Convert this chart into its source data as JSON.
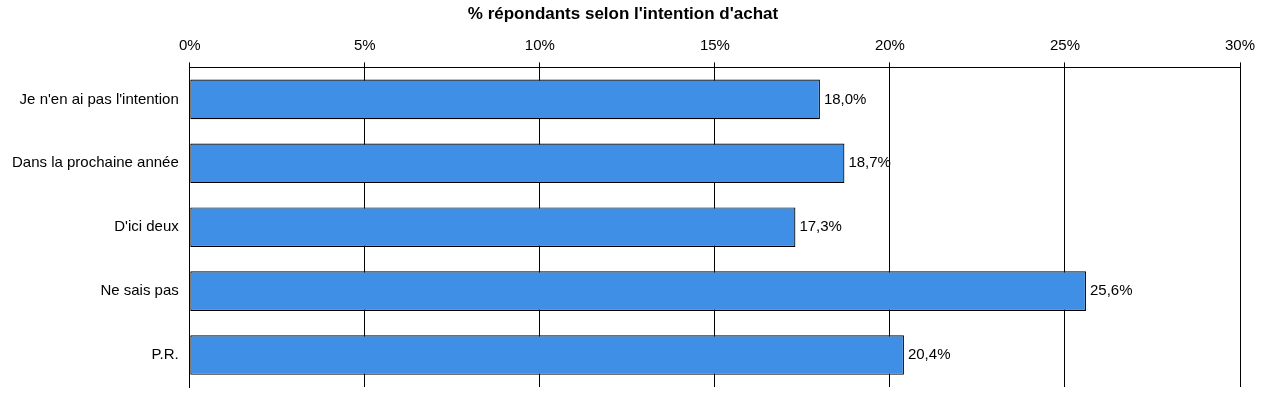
{
  "chart_data": {
    "type": "bar",
    "orientation": "horizontal",
    "title": "% répondants selon l'intention d'achat",
    "categories": [
      "Je n'en ai pas l'intention",
      "Dans la prochaine année",
      "D'ici deux",
      "Ne sais pas",
      "P.R."
    ],
    "values": [
      18.0,
      18.7,
      17.3,
      25.6,
      20.4
    ],
    "value_labels": [
      "18,0%",
      "18,7%",
      "17,3%",
      "25,6%",
      "20,4%"
    ],
    "color": "#3f8fe6",
    "xlim": [
      0,
      30
    ],
    "xticks": [
      {
        "value": 0,
        "label": "0%"
      },
      {
        "value": 5,
        "label": "5%"
      },
      {
        "value": 10,
        "label": "10%"
      },
      {
        "value": 15,
        "label": "15%"
      },
      {
        "value": 20,
        "label": "20%"
      },
      {
        "value": 25,
        "label": "25%"
      },
      {
        "value": 30,
        "label": "30%"
      }
    ],
    "grid": "x",
    "legend": false
  }
}
